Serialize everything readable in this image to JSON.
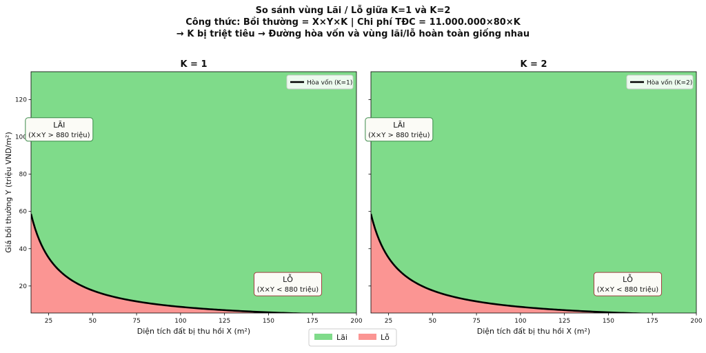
{
  "header": {
    "title_line1": "So sánh vùng Lãi / Lỗ giữa K=1 và K=2",
    "title_line2": "Công thức: Bồi thường = X×Y×K  |  Chi phí TĐC = 11.000.000×80×K",
    "title_line3": "→ K bị triệt tiêu → Đường hòa vốn và vùng lãi/lỗ hoàn toàn giống nhau"
  },
  "legend": {
    "profit_label": "Lãi",
    "loss_label": "Lỗ",
    "profit_color": "#7fdb8a",
    "loss_color": "#fb9593"
  },
  "chart_data": [
    {
      "type": "area",
      "title": "K = 1",
      "xlabel": "Diện tích đất bị thu hồi X (m²)",
      "ylabel": "Giá bồi thường Y (triệu VND/m²)",
      "xlim": [
        15,
        200
      ],
      "ylim": [
        5.5,
        135
      ],
      "xticks": [
        25,
        50,
        75,
        100,
        125,
        150,
        175,
        200
      ],
      "yticks": [
        20,
        40,
        60,
        80,
        100,
        120
      ],
      "breakeven": {
        "equation": "X×Y = 880",
        "product": 880,
        "label": "Hòa vốn (K=1)"
      },
      "regions": [
        {
          "name": "Lãi",
          "line1": "LÃI",
          "line2": "(X×Y > 880 triệu)",
          "x": 31,
          "y": 104
        },
        {
          "name": "Lỗ",
          "line1": "LỖ",
          "line2": "(X×Y < 880 triệu)",
          "x": 161,
          "y": 21
        }
      ],
      "legend_position": "top-right"
    },
    {
      "type": "area",
      "title": "K = 2",
      "xlabel": "Diện tích đất bị thu hồi X (m²)",
      "ylabel": "",
      "xlim": [
        15,
        200
      ],
      "ylim": [
        5.5,
        135
      ],
      "xticks": [
        25,
        50,
        75,
        100,
        125,
        150,
        175,
        200
      ],
      "yticks": [
        20,
        40,
        60,
        80,
        100,
        120
      ],
      "breakeven": {
        "equation": "X×Y = 880",
        "product": 880,
        "label": "Hòa vốn (K=2)"
      },
      "regions": [
        {
          "name": "Lãi",
          "line1": "LÃI",
          "line2": "(X×Y > 880 triệu)",
          "x": 31,
          "y": 104
        },
        {
          "name": "Lỗ",
          "line1": "LỖ",
          "line2": "(X×Y < 880 triệu)",
          "x": 161,
          "y": 21
        }
      ],
      "legend_position": "top-right"
    }
  ]
}
